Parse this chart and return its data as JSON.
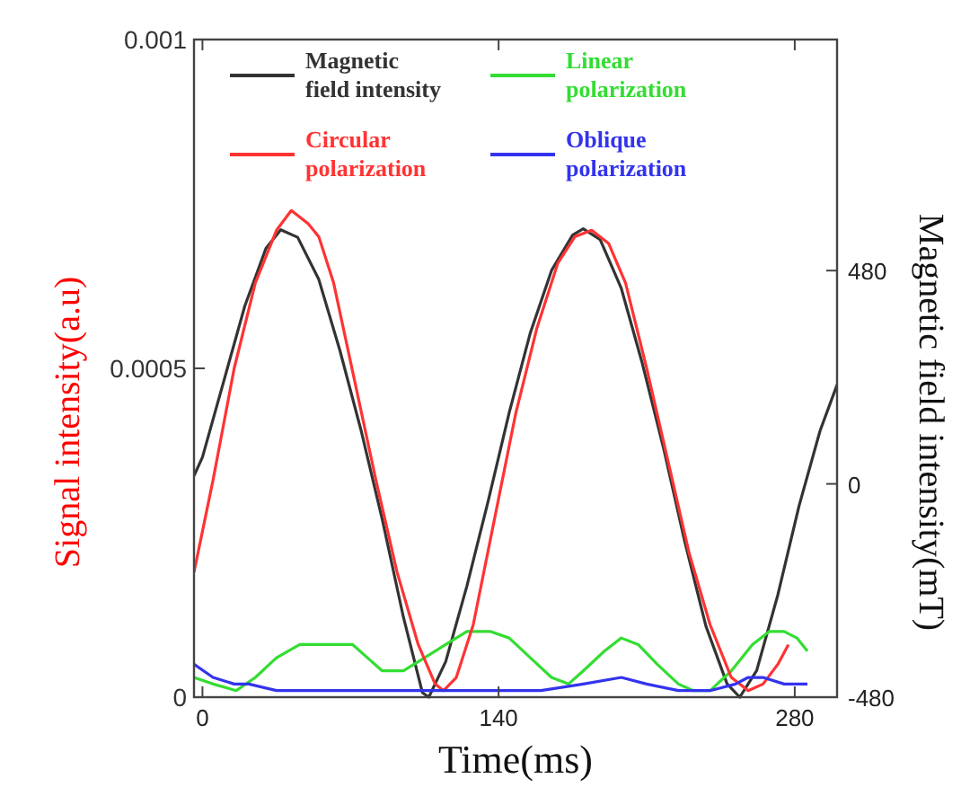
{
  "chart_data": {
    "type": "line",
    "xlabel": "Time(ms)",
    "ylabel": "Signal intensity(a.u)",
    "y2label": "Magnetic field intensity(mT)",
    "xlim": [
      -4,
      300
    ],
    "xticks": [
      0,
      140,
      280
    ],
    "ylim": [
      0,
      0.001
    ],
    "yticks": [
      0,
      0.0005,
      0.001
    ],
    "y2lim": [
      -480,
      1000
    ],
    "y2ticks": [
      -480,
      0,
      480
    ],
    "legend": "top",
    "grid": false,
    "marker": "none",
    "line_style": "solid",
    "series": [
      {
        "name": "Magnetic\nfield intensity",
        "color": "#333333",
        "axis": "y2",
        "x": [
          -4,
          0,
          10,
          20,
          30,
          37,
          45,
          55,
          65,
          75,
          85,
          95,
          104,
          107,
          115,
          125,
          135,
          145,
          155,
          165,
          175,
          180,
          188,
          198,
          208,
          218,
          228,
          238,
          248,
          254,
          262,
          272,
          282,
          292,
          300
        ],
        "values": [
          18,
          60,
          230,
          400,
          530,
          572,
          555,
          460,
          300,
          120,
          -80,
          -300,
          -470,
          -480,
          -400,
          -230,
          -40,
          160,
          340,
          480,
          560,
          574,
          550,
          440,
          270,
          80,
          -130,
          -320,
          -450,
          -480,
          -420,
          -250,
          -50,
          120,
          223
        ]
      },
      {
        "name": "Linear\npolarization",
        "color": "#33dd33",
        "x": [
          -4,
          5,
          16,
          25,
          35,
          46,
          60,
          71,
          78,
          85,
          95,
          105,
          115,
          125,
          136,
          145,
          155,
          165,
          173,
          180,
          190,
          198,
          206,
          215,
          225,
          232,
          240,
          250,
          260,
          268,
          275,
          281,
          286
        ],
        "values": [
          3e-05,
          2e-05,
          1e-05,
          3e-05,
          6e-05,
          8e-05,
          8e-05,
          8e-05,
          6e-05,
          4e-05,
          4e-05,
          6e-05,
          8e-05,
          0.0001,
          0.0001,
          9e-05,
          6e-05,
          3e-05,
          2e-05,
          4e-05,
          7e-05,
          9e-05,
          8e-05,
          5e-05,
          2e-05,
          1e-05,
          1e-05,
          4e-05,
          8e-05,
          0.0001,
          0.0001,
          9e-05,
          7e-05
        ]
      },
      {
        "name": "Circular\npolarization",
        "color": "#ff3333",
        "x": [
          -4,
          5,
          15,
          25,
          35,
          42,
          50,
          55,
          62,
          72,
          82,
          92,
          102,
          110,
          114,
          120,
          128,
          138,
          148,
          158,
          168,
          176,
          184,
          192,
          200,
          210,
          220,
          230,
          240,
          250,
          258,
          265,
          272,
          277
        ],
        "values": [
          0.00019,
          0.00033,
          0.0005,
          0.00063,
          0.00071,
          0.00074,
          0.00072,
          0.0007,
          0.00063,
          0.00048,
          0.00033,
          0.00019,
          8e-05,
          2e-05,
          1e-05,
          3e-05,
          0.00011,
          0.00027,
          0.00043,
          0.00056,
          0.00066,
          0.0007,
          0.00071,
          0.00069,
          0.00063,
          0.0005,
          0.00036,
          0.00022,
          0.00011,
          3e-05,
          1e-05,
          2e-05,
          5e-05,
          8e-05
        ]
      },
      {
        "name": "Oblique\npolarization",
        "color": "#3333ee",
        "x": [
          -4,
          5,
          15,
          22,
          35,
          50,
          70,
          90,
          110,
          125,
          140,
          160,
          180,
          198,
          210,
          225,
          240,
          252,
          258,
          265,
          275,
          286
        ],
        "values": [
          5e-05,
          3e-05,
          2e-05,
          2e-05,
          1e-05,
          1e-05,
          1e-05,
          1e-05,
          1e-05,
          1e-05,
          1e-05,
          1e-05,
          2e-05,
          3e-05,
          2e-05,
          1e-05,
          1e-05,
          2e-05,
          3e-05,
          3e-05,
          2e-05,
          2e-05
        ]
      }
    ]
  }
}
